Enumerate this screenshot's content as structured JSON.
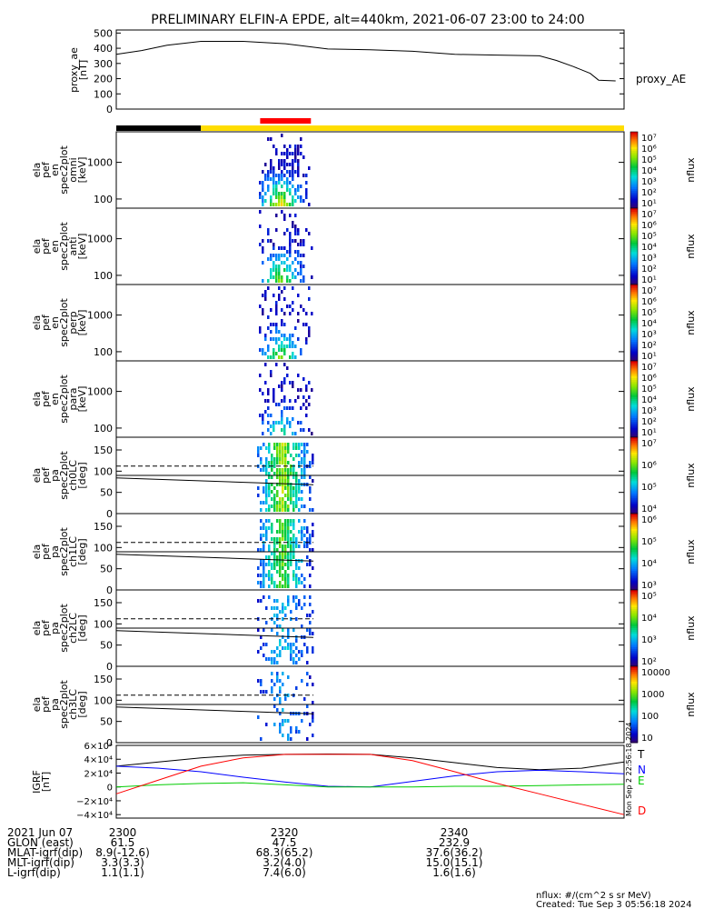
{
  "title": "PRELIMINARY ELFIN-A EPDE, alt=440km, 2021-06-07 23:00 to 24:00",
  "footer": {
    "units_note": "nflux: #/(cm^2 s sr MeV)",
    "created": "Created: Tue Sep  3 05:56:18 2024",
    "side_stamp": "Mon Sep  2 22:56:18 2024"
  },
  "orbit_table": {
    "rows": [
      {
        "label": "2021 Jun 07",
        "values": [
          "2300",
          "2320",
          "2340"
        ]
      },
      {
        "label": "GLON (east)",
        "values": [
          "61.5",
          "47.5",
          "232.9"
        ]
      },
      {
        "label": "MLAT-igrf(dip)",
        "values": [
          "8.9(-12.6)",
          "68.3(65.2)",
          "37.6(36.2)"
        ]
      },
      {
        "label": "MLT-igrf(dip)",
        "values": [
          "3.3(3.3)",
          "3.2(4.0)",
          "15.0(15.1)"
        ]
      },
      {
        "label": "L-igrf(dip)",
        "values": [
          "1.1(1.1)",
          "7.4(6.0)",
          "1.6(1.6)"
        ]
      }
    ]
  },
  "chart_data": [
    {
      "id": "proxy_ae",
      "type": "line",
      "ylabel_lines": [
        "proxy_ae",
        "[nT]"
      ],
      "right_label": "proxy_AE",
      "yticks": [
        "500",
        "400",
        "300",
        "200",
        "100",
        "0"
      ],
      "ylim": [
        0,
        520
      ],
      "x_minutes": [
        0,
        3,
        6,
        10,
        15,
        20,
        25,
        30,
        35,
        40,
        45,
        50,
        52,
        54,
        56,
        57,
        59
      ],
      "values": [
        360,
        385,
        420,
        445,
        445,
        430,
        395,
        390,
        380,
        360,
        355,
        350,
        320,
        280,
        235,
        190,
        185
      ]
    },
    {
      "id": "bar_indicator",
      "type": "bar",
      "segments": [
        {
          "from_min": 0,
          "to_min": 10,
          "color": "#000000"
        },
        {
          "from_min": 10,
          "to_min": 60,
          "color": "#ffdd00"
        },
        {
          "from_min": 17,
          "to_min": 23,
          "color": "#ff0000"
        }
      ]
    },
    {
      "id": "spec_omni",
      "type": "heatmap",
      "ylabel_lines": [
        "ela",
        "pef",
        "en",
        "spec2plot",
        "omni",
        "[keV]"
      ],
      "yticks": [
        "1000",
        "100"
      ],
      "colorbar": {
        "label": "nflux",
        "ticks": [
          "10⁷",
          "10⁶",
          "10⁵",
          "10⁴",
          "10³",
          "10²",
          "10¹"
        ]
      }
    },
    {
      "id": "spec_anti",
      "type": "heatmap",
      "ylabel_lines": [
        "ela",
        "pef",
        "en",
        "spec2plot",
        "anti",
        "[keV]"
      ],
      "yticks": [
        "1000",
        "100"
      ],
      "colorbar": {
        "label": "nflux",
        "ticks": [
          "10⁷",
          "10⁶",
          "10⁵",
          "10⁴",
          "10³",
          "10²",
          "10¹"
        ]
      }
    },
    {
      "id": "spec_perp",
      "type": "heatmap",
      "ylabel_lines": [
        "ela",
        "pef",
        "en",
        "spec2plot",
        "perp",
        "[keV]"
      ],
      "yticks": [
        "1000",
        "100"
      ],
      "colorbar": {
        "label": "nflux",
        "ticks": [
          "10⁷",
          "10⁶",
          "10⁵",
          "10⁴",
          "10³",
          "10²",
          "10¹"
        ]
      }
    },
    {
      "id": "spec_para",
      "type": "heatmap",
      "ylabel_lines": [
        "ela",
        "pef",
        "en",
        "spec2plot",
        "para",
        "[keV]"
      ],
      "yticks": [
        "1000",
        "100"
      ],
      "colorbar": {
        "label": "nflux",
        "ticks": [
          "10⁷",
          "10⁶",
          "10⁵",
          "10⁴",
          "10³",
          "10²",
          "10¹"
        ]
      }
    },
    {
      "id": "pa_ch0",
      "type": "heatmap",
      "ylabel_lines": [
        "ela",
        "pef",
        "pa",
        "spec2plot",
        "ch0LC",
        "[deg]"
      ],
      "yticks": [
        "150",
        "100",
        "50",
        "0"
      ],
      "colorbar": {
        "label": "nflux",
        "ticks": [
          "10⁷",
          "10⁶",
          "10⁵",
          "10⁴"
        ]
      }
    },
    {
      "id": "pa_ch1",
      "type": "heatmap",
      "ylabel_lines": [
        "ela",
        "pef",
        "pa",
        "spec2plot",
        "ch1LC",
        "[deg]"
      ],
      "yticks": [
        "150",
        "100",
        "50",
        "0"
      ],
      "colorbar": {
        "label": "nflux",
        "ticks": [
          "10⁶",
          "10⁵",
          "10⁴",
          "10³"
        ]
      }
    },
    {
      "id": "pa_ch2",
      "type": "heatmap",
      "ylabel_lines": [
        "ela",
        "pef",
        "pa",
        "spec2plot",
        "ch2LC",
        "[deg]"
      ],
      "yticks": [
        "150",
        "100",
        "50",
        "0"
      ],
      "colorbar": {
        "label": "nflux",
        "ticks": [
          "10⁵",
          "10⁴",
          "10³",
          "10²"
        ]
      }
    },
    {
      "id": "pa_ch3",
      "type": "heatmap",
      "ylabel_lines": [
        "ela",
        "pef",
        "pa",
        "spec2plot",
        "ch3LC",
        "[deg]"
      ],
      "yticks": [
        "150",
        "100",
        "50",
        "0"
      ],
      "colorbar": {
        "label": "nflux",
        "ticks": [
          "10000",
          "1000",
          "100",
          "10"
        ]
      }
    },
    {
      "id": "igrf",
      "type": "line",
      "ylabel_lines": [
        "IGRF",
        "[nT]"
      ],
      "yticks": [
        "6×10⁴",
        "4×10⁴",
        "2×10⁴",
        "0",
        "−2×10⁴",
        "−4×10⁴"
      ],
      "ylim": [
        -45000,
        60000
      ],
      "x_minutes": [
        0,
        5,
        10,
        15,
        20,
        25,
        30,
        35,
        40,
        45,
        50,
        55,
        60
      ],
      "series": [
        {
          "name": "T",
          "color": "#000000",
          "values": [
            30000,
            36000,
            42000,
            46000,
            47000,
            47500,
            47000,
            42000,
            35000,
            28000,
            25000,
            27000,
            36000
          ]
        },
        {
          "name": "N",
          "color": "#0000ff",
          "values": [
            30000,
            27000,
            22000,
            14000,
            7000,
            1000,
            0,
            8000,
            16000,
            22000,
            24000,
            22000,
            19000
          ]
        },
        {
          "name": "E",
          "color": "#00cc00",
          "values": [
            0,
            3000,
            5000,
            6000,
            3000,
            0,
            0,
            0,
            1000,
            1000,
            2000,
            3000,
            4000
          ]
        },
        {
          "name": "D",
          "color": "#ff0000",
          "values": [
            -10000,
            10000,
            30000,
            42000,
            47000,
            47000,
            47000,
            38000,
            22000,
            5000,
            -10000,
            -25000,
            -40000
          ]
        }
      ]
    }
  ]
}
